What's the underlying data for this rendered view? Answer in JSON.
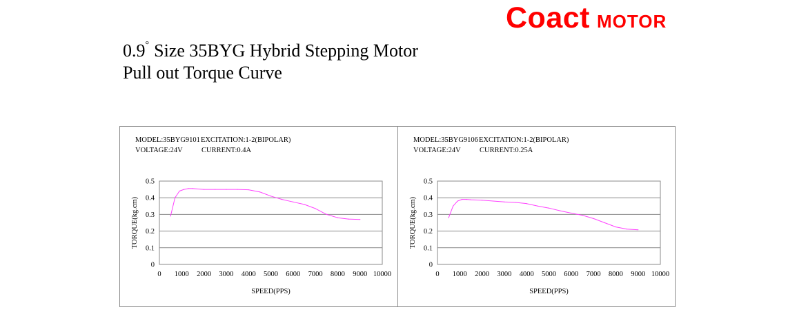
{
  "brand": {
    "name": "Coact",
    "suffix": "MOTOR",
    "color": "#ff0000"
  },
  "title": {
    "line1_prefix": "0.9",
    "degree": "°",
    "line1_rest": "Size 35BYG Hybrid Stepping Motor",
    "line2": "Pull out Torque Curve"
  },
  "chart_data": [
    {
      "type": "line",
      "info": {
        "model": "MODEL:35BYG9101",
        "excitation": "EXCITATION:1-2(BIPOLAR)",
        "voltage": "VOLTAGE:24V",
        "current": "CURRENT:0.4A"
      },
      "xlabel": "SPEED(PPS)",
      "ylabel": "TORQUE(kg.cm)",
      "xlim": [
        0,
        10000
      ],
      "ylim": [
        0,
        0.5
      ],
      "xticks": [
        "0",
        "1000",
        "2000",
        "3000",
        "4000",
        "5000",
        "6000",
        "7000",
        "8000",
        "9000",
        "10000"
      ],
      "yticks": [
        "0",
        "0.1",
        "0.2",
        "0.3",
        "0.4",
        "0.5"
      ],
      "grid": "horizontal",
      "line_color": "#ff40ff",
      "series": [
        {
          "x": [
            500,
            700,
            900,
            1100,
            1300,
            1500,
            2000,
            2500,
            3000,
            3500,
            4000,
            4500,
            5000,
            5500,
            6000,
            6500,
            7000,
            7500,
            8000,
            8500,
            9000
          ],
          "y": [
            0.29,
            0.4,
            0.44,
            0.45,
            0.455,
            0.455,
            0.45,
            0.45,
            0.45,
            0.45,
            0.448,
            0.435,
            0.41,
            0.39,
            0.375,
            0.36,
            0.335,
            0.3,
            0.28,
            0.272,
            0.27
          ]
        }
      ]
    },
    {
      "type": "line",
      "info": {
        "model": "MODEL:35BYG9106",
        "excitation": "EXCITATION:1-2(BIPOLAR)",
        "voltage": "VOLTAGE:24V",
        "current": "CURRENT:0.25A"
      },
      "xlabel": "SPEED(PPS)",
      "ylabel": "TORQUE(kg.cm)",
      "xlim": [
        0,
        10000
      ],
      "ylim": [
        0,
        0.5
      ],
      "xticks": [
        "0",
        "1000",
        "2000",
        "3000",
        "4000",
        "5000",
        "6000",
        "7000",
        "8000",
        "9000",
        "10000"
      ],
      "yticks": [
        "0",
        "0.1",
        "0.2",
        "0.3",
        "0.4",
        "0.5"
      ],
      "grid": "horizontal",
      "line_color": "#ff40ff",
      "series": [
        {
          "x": [
            500,
            700,
            900,
            1100,
            1300,
            1500,
            2000,
            2500,
            3000,
            3500,
            4000,
            4500,
            5000,
            5500,
            6000,
            6500,
            7000,
            7500,
            8000,
            8500,
            9000
          ],
          "y": [
            0.28,
            0.35,
            0.38,
            0.39,
            0.39,
            0.388,
            0.385,
            0.38,
            0.375,
            0.372,
            0.365,
            0.35,
            0.338,
            0.322,
            0.308,
            0.295,
            0.275,
            0.25,
            0.225,
            0.212,
            0.208
          ]
        }
      ]
    }
  ]
}
